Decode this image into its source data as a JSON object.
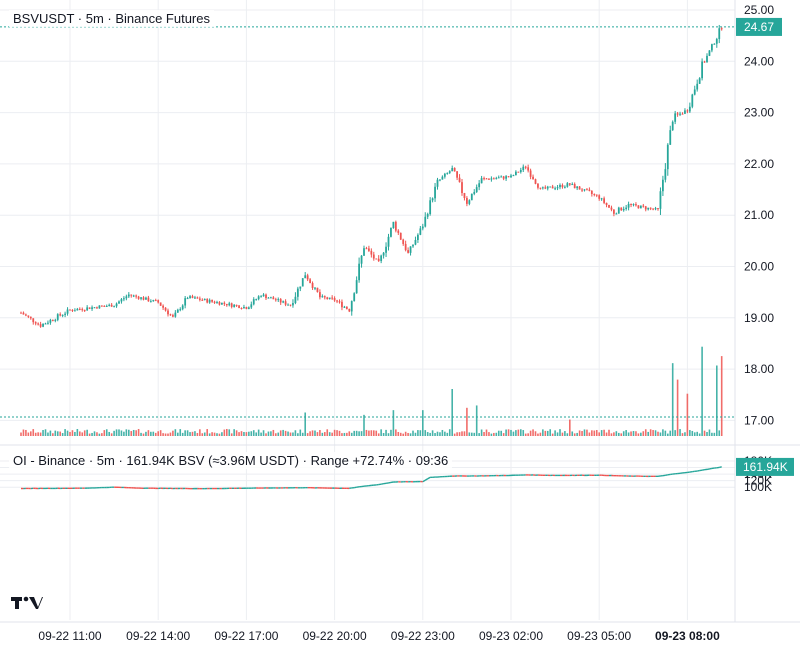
{
  "main_pane": {
    "title": "BSVUSDT · 5m · Binance Futures",
    "last_price_label": "24.67"
  },
  "oi_pane": {
    "title": "OI - Binance · 5m · 161.94K BSV (≈3.96M USDT) · Range +72.74% · 09:36",
    "last_value_label": "161.94K"
  },
  "colors": {
    "up": "#26a69a",
    "down": "#ef5350",
    "grid": "#eceef2",
    "axis_text": "#131722",
    "label_bg": "#26a69a"
  },
  "logo": {
    "icon": "tradingview-logo-icon"
  },
  "chart_data": [
    {
      "type": "candlestick",
      "title": "BSVUSDT · 5m · Binance Futures",
      "y_ticks": [
        "25.00",
        "24.00",
        "23.00",
        "22.00",
        "21.00",
        "20.00",
        "19.00",
        "18.00",
        "17.00"
      ],
      "ylim": [
        16.75,
        25.1
      ],
      "x_labels": [
        "09-22 11:00",
        "09-22 14:00",
        "09-22 17:00",
        "09-22 20:00",
        "09-22 23:00",
        "09-23 02:00",
        "09-23 05:00",
        "09-23 08:00"
      ],
      "x_labels_bold": "09-23 08:00",
      "last_value": 24.67,
      "price_path": [
        {
          "t": "09-22 09:20",
          "p": 19.1
        },
        {
          "t": "09-22 10:00",
          "p": 18.85
        },
        {
          "t": "09-22 11:00",
          "p": 19.15
        },
        {
          "t": "09-22 12:30",
          "p": 19.25
        },
        {
          "t": "09-22 13:00",
          "p": 19.45
        },
        {
          "t": "09-22 14:00",
          "p": 19.3
        },
        {
          "t": "09-22 14:30",
          "p": 19.0
        },
        {
          "t": "09-22 15:00",
          "p": 19.4
        },
        {
          "t": "09-22 16:00",
          "p": 19.3
        },
        {
          "t": "09-22 17:00",
          "p": 19.2
        },
        {
          "t": "09-22 17:30",
          "p": 19.45
        },
        {
          "t": "09-22 18:30",
          "p": 19.25
        },
        {
          "t": "09-22 19:00",
          "p": 19.85
        },
        {
          "t": "09-22 19:30",
          "p": 19.4
        },
        {
          "t": "09-22 20:00",
          "p": 19.35
        },
        {
          "t": "09-22 20:30",
          "p": 19.15
        },
        {
          "t": "09-22 21:00",
          "p": 20.4
        },
        {
          "t": "09-22 21:30",
          "p": 20.05
        },
        {
          "t": "09-22 22:00",
          "p": 20.85
        },
        {
          "t": "09-22 22:30",
          "p": 20.25
        },
        {
          "t": "09-22 23:00",
          "p": 20.8
        },
        {
          "t": "09-22 23:30",
          "p": 21.65
        },
        {
          "t": "09-23 00:00",
          "p": 21.9
        },
        {
          "t": "09-23 00:30",
          "p": 21.25
        },
        {
          "t": "09-23 01:00",
          "p": 21.7
        },
        {
          "t": "09-23 02:00",
          "p": 21.75
        },
        {
          "t": "09-23 02:30",
          "p": 21.95
        },
        {
          "t": "09-23 03:00",
          "p": 21.5
        },
        {
          "t": "09-23 04:00",
          "p": 21.6
        },
        {
          "t": "09-23 05:00",
          "p": 21.35
        },
        {
          "t": "09-23 05:30",
          "p": 21.05
        },
        {
          "t": "09-23 06:00",
          "p": 21.2
        },
        {
          "t": "09-23 07:00",
          "p": 21.1
        },
        {
          "t": "09-23 07:30",
          "p": 22.9
        },
        {
          "t": "09-23 08:00",
          "p": 23.05
        },
        {
          "t": "09-23 08:30",
          "p": 23.9
        },
        {
          "t": "09-23 09:10",
          "p": 24.67
        }
      ],
      "volume": {
        "baseline_relative_height": 0.1,
        "spikes": [
          {
            "t": "09-22 19:00",
            "v": 0.5
          },
          {
            "t": "09-22 21:00",
            "v": 0.45
          },
          {
            "t": "09-22 22:00",
            "v": 0.55
          },
          {
            "t": "09-22 23:00",
            "v": 0.55
          },
          {
            "t": "09-23 00:00",
            "v": 1.0
          },
          {
            "t": "09-23 00:30",
            "v": 0.6
          },
          {
            "t": "09-23 00:50",
            "v": 0.65
          },
          {
            "t": "09-23 04:00",
            "v": 0.35
          },
          {
            "t": "09-23 07:30",
            "v": 1.55
          },
          {
            "t": "09-23 07:40",
            "v": 1.2
          },
          {
            "t": "09-23 08:00",
            "v": 0.9
          },
          {
            "t": "09-23 08:30",
            "v": 1.9
          },
          {
            "t": "09-23 09:00",
            "v": 1.5
          },
          {
            "t": "09-23 09:10",
            "v": 1.7
          }
        ]
      }
    },
    {
      "type": "line",
      "title": "OI - Binance · 5m · 161.94K BSV (≈3.96M USDT) · Range +72.74% · 09:36",
      "y_ticks": [
        "180K",
        "160K",
        "140K",
        "120K",
        "100K"
      ],
      "ylim": [
        82000,
        184000
      ],
      "last_value": 161940,
      "last_value_label": "161.94K",
      "oi_path": [
        {
          "t": "09-22 09:20",
          "v": 96000
        },
        {
          "t": "09-22 11:30",
          "v": 97000
        },
        {
          "t": "09-22 12:30",
          "v": 100000
        },
        {
          "t": "09-22 13:30",
          "v": 97000
        },
        {
          "t": "09-22 15:30",
          "v": 95500
        },
        {
          "t": "09-22 17:00",
          "v": 97000
        },
        {
          "t": "09-22 19:00",
          "v": 98500
        },
        {
          "t": "09-22 20:30",
          "v": 96500
        },
        {
          "t": "09-22 21:00",
          "v": 103000
        },
        {
          "t": "09-22 21:30",
          "v": 108000
        },
        {
          "t": "09-22 22:00",
          "v": 116000
        },
        {
          "t": "09-22 23:00",
          "v": 117000
        },
        {
          "t": "09-22 23:15",
          "v": 130000
        },
        {
          "t": "09-23 00:00",
          "v": 134000
        },
        {
          "t": "09-23 01:00",
          "v": 134500
        },
        {
          "t": "09-23 02:00",
          "v": 136000
        },
        {
          "t": "09-23 02:30",
          "v": 137500
        },
        {
          "t": "09-23 03:30",
          "v": 136000
        },
        {
          "t": "09-23 05:00",
          "v": 136500
        },
        {
          "t": "09-23 06:00",
          "v": 134000
        },
        {
          "t": "09-23 07:00",
          "v": 133000
        },
        {
          "t": "09-23 07:30",
          "v": 140000
        },
        {
          "t": "09-23 08:00",
          "v": 145000
        },
        {
          "t": "09-23 08:30",
          "v": 152000
        },
        {
          "t": "09-23 09:10",
          "v": 161940
        }
      ]
    }
  ]
}
